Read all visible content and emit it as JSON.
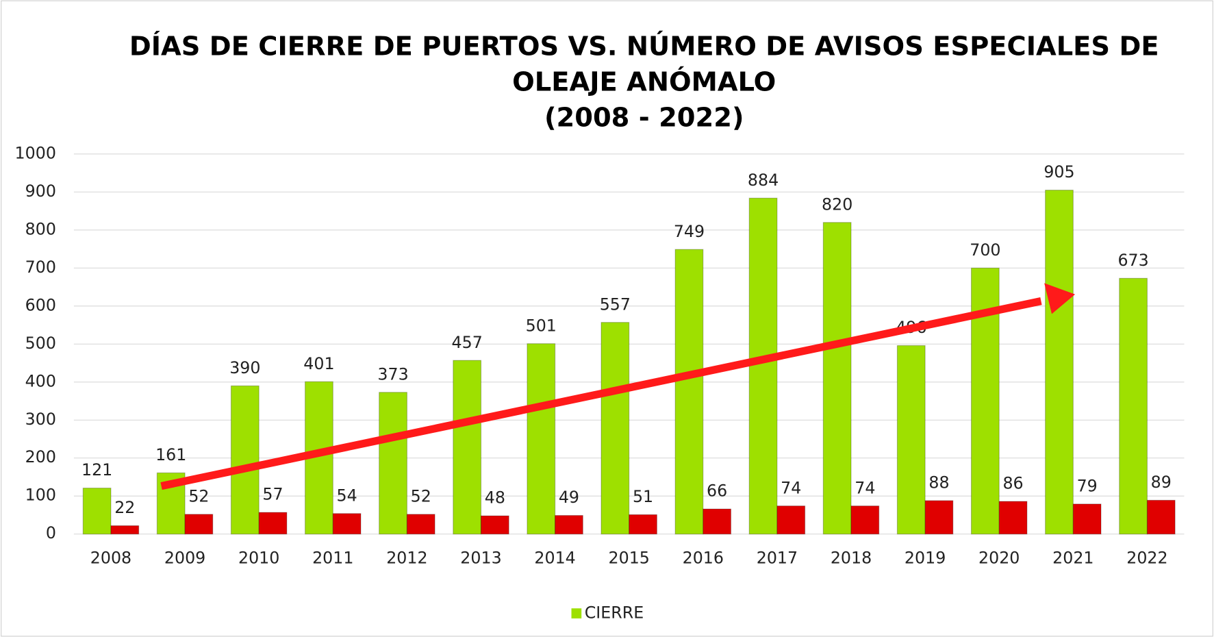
{
  "chart_data": {
    "type": "bar",
    "title": [
      "DÍAS DE CIERRE DE PUERTOS VS. NÚMERO DE AVISOS ESPECIALES DE",
      "OLEAJE ANÓMALO",
      "(2008 - 2022)"
    ],
    "categories": [
      "2008",
      "2009",
      "2010",
      "2011",
      "2012",
      "2013",
      "2014",
      "2015",
      "2016",
      "2017",
      "2018",
      "2019",
      "2020",
      "2021",
      "2022"
    ],
    "series": [
      {
        "name": "CIERRE",
        "color": "#9ee000",
        "values": [
          121,
          161,
          390,
          401,
          373,
          457,
          501,
          557,
          749,
          884,
          820,
          496,
          700,
          905,
          673
        ]
      },
      {
        "color": "#e00000",
        "values": [
          22,
          52,
          57,
          54,
          52,
          48,
          49,
          51,
          66,
          74,
          74,
          88,
          86,
          79,
          89
        ]
      }
    ],
    "ylim": [
      0,
      1000
    ],
    "yticks": [
      0,
      100,
      200,
      300,
      400,
      500,
      600,
      700,
      800,
      900,
      1000
    ],
    "grid": true,
    "legend": "bottom"
  }
}
